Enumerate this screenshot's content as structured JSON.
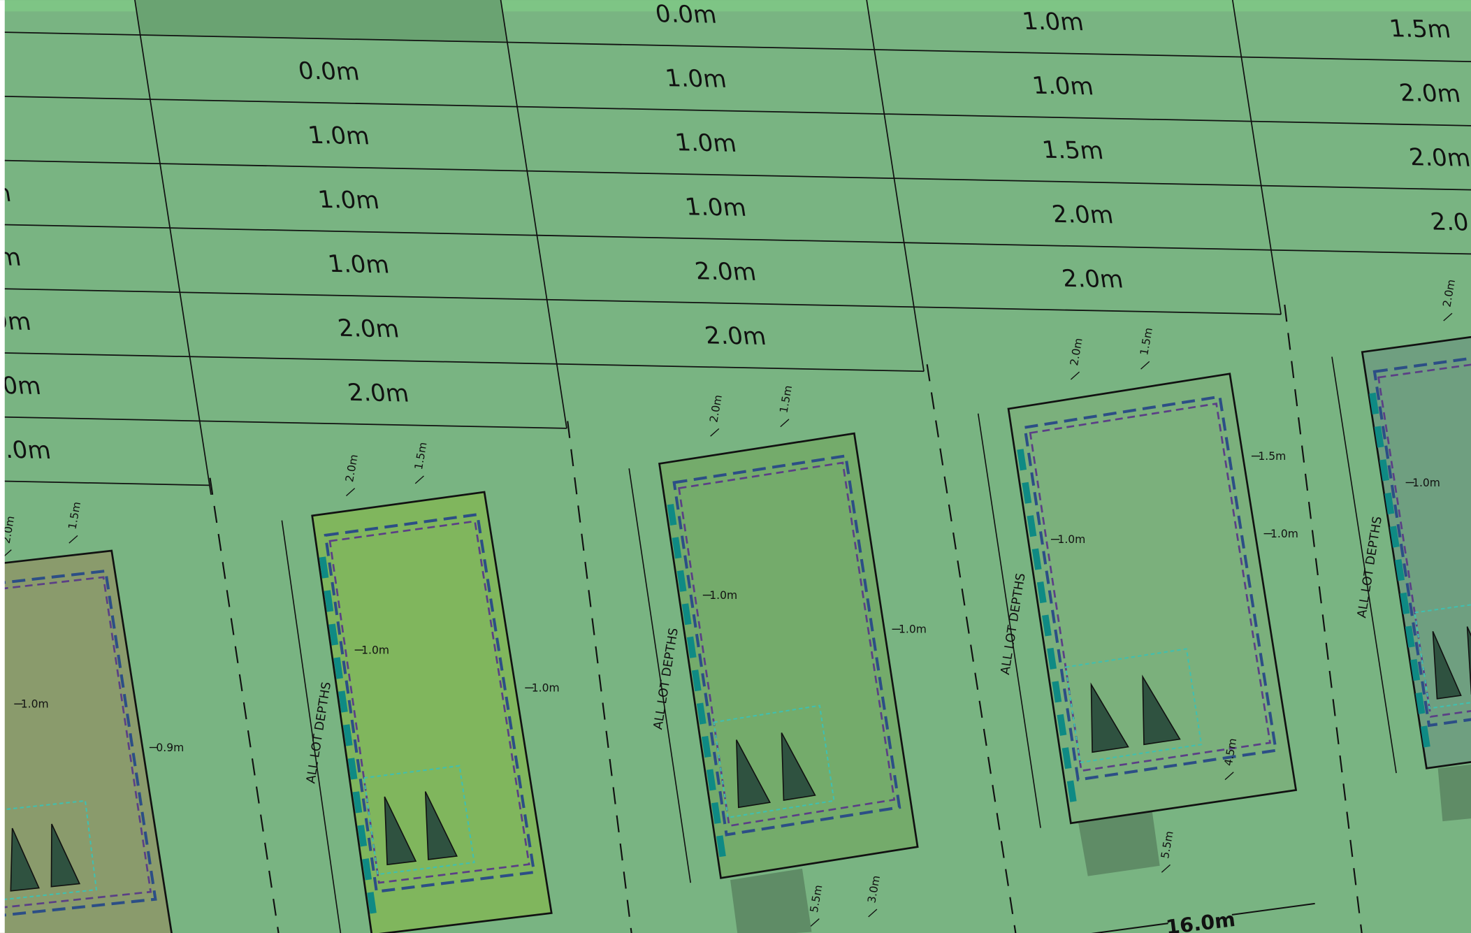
{
  "table": {
    "columns": [
      {
        "cells": [
          "n",
          "m",
          "9m",
          "0m",
          ".0m"
        ]
      },
      {
        "cells": [
          "0.0m",
          "1.0m",
          "1.0m",
          "1.0m",
          "2.0m",
          "2.0m"
        ]
      },
      {
        "cells": [
          "0.0m",
          "1.0m",
          "1.0m",
          "1.0m",
          "2.0m",
          "2.0m"
        ]
      },
      {
        "cells": [
          "1.0m",
          "1.0m",
          "1.5m",
          "2.0m",
          "2.0m"
        ]
      },
      {
        "cells": [
          "1.5m",
          "2.0m",
          "2.0m",
          "2.0"
        ]
      }
    ]
  },
  "lots": [
    {
      "dims": [
        "2.0m",
        "1.5m",
        "1.0m",
        "0.9m"
      ]
    },
    {
      "dims": [
        "2.0m",
        "1.5m",
        "1.0m",
        "1.0m"
      ],
      "depth": "ALL LOT DEPTHS"
    },
    {
      "dims": [
        "2.0m",
        "1.5m",
        "1.0m",
        "1.0m",
        "5.5m",
        "3.0m"
      ],
      "depth": "ALL LOT DEPTHS"
    },
    {
      "dims": [
        "2.0m",
        "1.5m",
        "1.5m",
        "1.0m",
        "1.0m",
        "4.5m",
        "5.5m"
      ],
      "depth": "ALL LOT DEPTHS",
      "frontage": "16.0m"
    },
    {
      "dims": [
        "2.0m",
        "1.0m"
      ],
      "depth": "ALL LOT DEPTHS"
    }
  ]
}
